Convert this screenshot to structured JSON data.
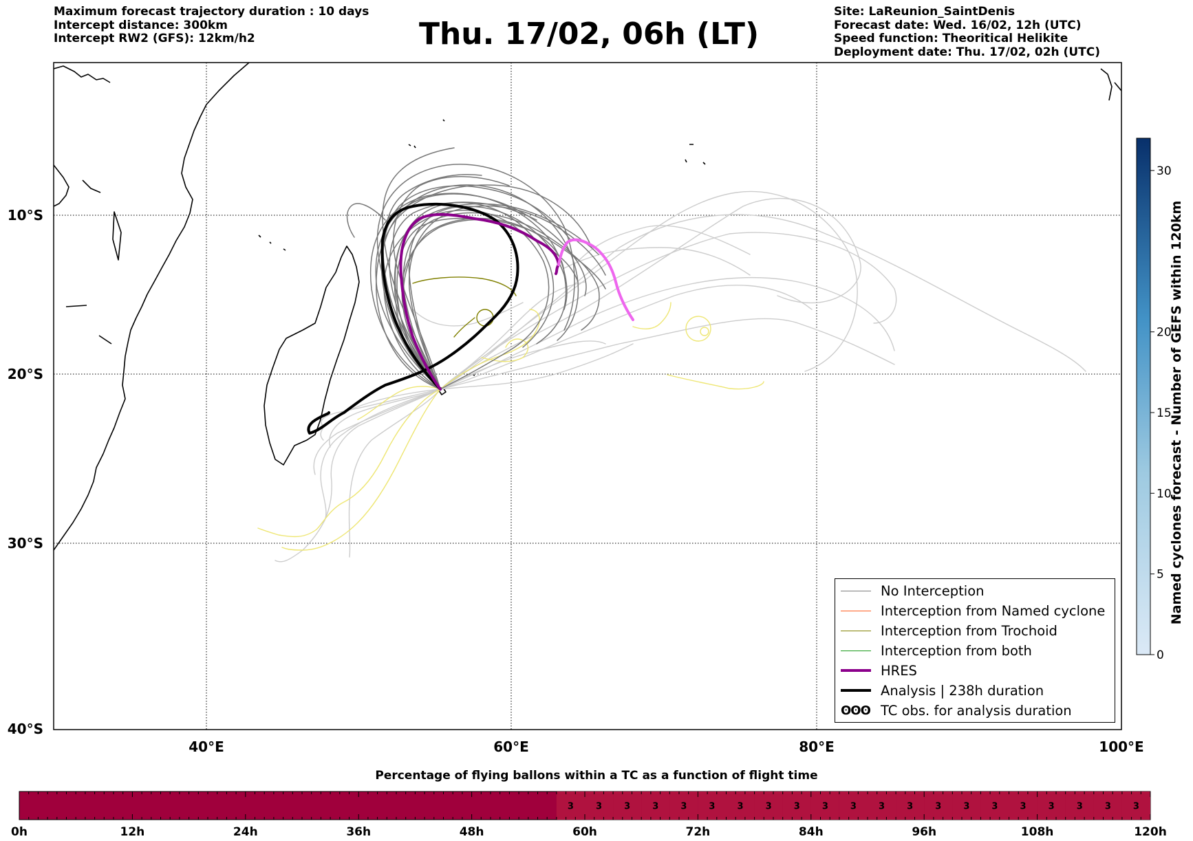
{
  "header": {
    "left_lines": [
      "Maximum forecast trajectory duration : 10 days",
      "Intercept distance: 300km",
      "Intercept RW2 (GFS):  12km/h2"
    ],
    "title": "Thu. 17/02, 06h (LT)",
    "right_lines": [
      "Site: LaReunion_SaintDenis",
      "Forecast date: Wed. 16/02, 12h (UTC)",
      "Speed function: Theoritical Helikite",
      "Deployment date: Thu. 17/02, 02h (UTC)"
    ]
  },
  "map": {
    "lon_range": [
      30,
      100
    ],
    "lat_range": [
      -40,
      0
    ],
    "lon_labels": [
      "40°E",
      "60°E",
      "80°E",
      "100°E"
    ],
    "lat_labels": [
      "10°S",
      "20°S",
      "30°S",
      "40°S"
    ]
  },
  "colorbar": {
    "label": "Named cyclones forecast - Number of GEFS within 120km",
    "range": [
      0,
      32
    ],
    "tick_labels": [
      "0",
      "5",
      "10",
      "15",
      "20",
      "30"
    ],
    "color_low": "#dbe9f6",
    "color_high": "#08306b"
  },
  "legend": {
    "items": [
      {
        "label": "No Interception",
        "color": "#7a7a7a"
      },
      {
        "label": "Interception from Named cyclone",
        "color": "#ff5a1a"
      },
      {
        "label": "Interception from Trochoid",
        "color": "#808000"
      },
      {
        "label": "Interception from both",
        "color": "#1a9a1a"
      },
      {
        "label": "HRES",
        "color": "#8b008b"
      },
      {
        "label": "Analysis | 238h duration",
        "color": "#000000"
      },
      {
        "label": "TC obs. for analysis duration",
        "symbol": "ʘʘʘ"
      }
    ]
  },
  "trajectory_colors": {
    "no_interception": "#777777",
    "light_gray": "#cccccc",
    "yellow": "#eee673",
    "olive": "#808000",
    "hres": "#8b008b",
    "hres_tc": "#ee66ee",
    "analysis": "#000000"
  },
  "bottom_bar": {
    "title": "Percentage of flying ballons within a TC as a function of flight time",
    "tick_labels": [
      "0h",
      "12h",
      "24h",
      "36h",
      "48h",
      "60h",
      "72h",
      "84h",
      "96h",
      "108h",
      "120h"
    ],
    "segment_value_label": "3",
    "color_empty": "#a0003c",
    "color_value": "#b0123f",
    "value_start_hour": 57
  }
}
